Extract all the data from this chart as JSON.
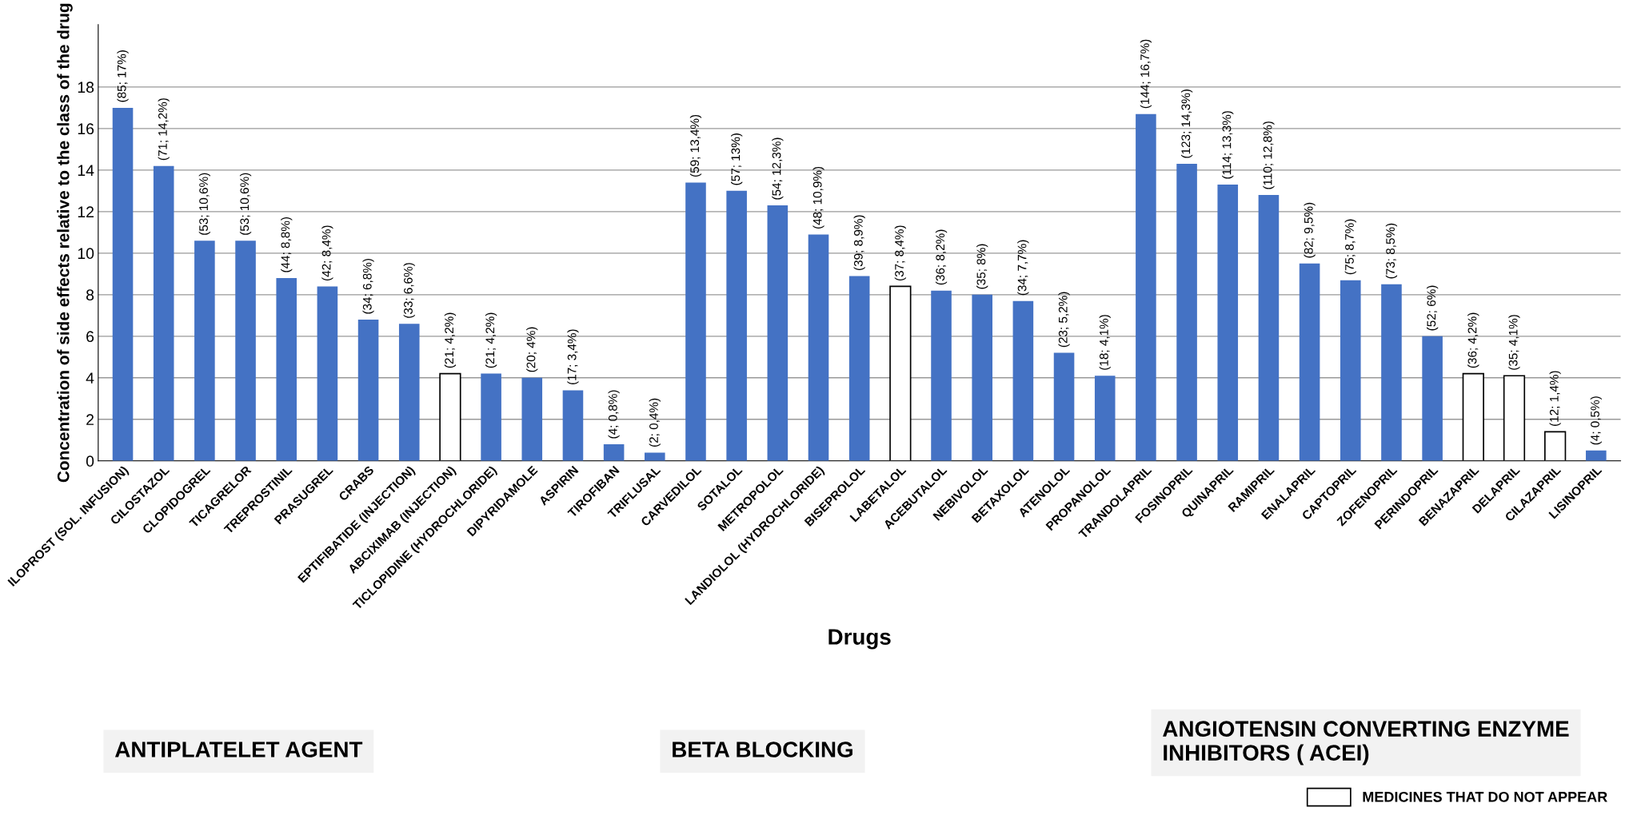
{
  "chart_data": {
    "type": "bar",
    "xlabel": "Drugs",
    "ylabel": "Concentration of side effects relative to the class of the drug",
    "categories": [
      "ILOPROST (SOL. INFUSION)",
      "CILOSTAZOL",
      "CLOPIDOGREL",
      "TICAGRELOR",
      "TREPROSTINIL",
      "PRASUGREL",
      "CRABS",
      "EPTIFIBATIDE (INJECTION)",
      "ABCIXIMAB (INJECTION)",
      "TICLOPIDINE (HYDROCHLORIDE)",
      "DIPYRIDAMOLE",
      "ASPIRIN",
      "TIROFIBAN",
      "TRIFLUSAL",
      "CARVEDILOL",
      "SOTALOL",
      "METROPOLOL",
      "LANDIOLOL (HYDROCHLORIDE)",
      "BISEPROLOL",
      "LABETALOL",
      "ACEBUTALOL",
      "NEBIVOLOL",
      "BETAXOLOL",
      "ATENOLOL",
      "PROPANOLOL",
      "TRANDOLAPRIL",
      "FOSINOPRIL",
      "QUINAPRIL",
      "RAMIPRIL",
      "ENALAPRIL",
      "CAPTOPRIL",
      "ZOFENOPRIL",
      "PERINDOPRIL",
      "BENAZAPRIL",
      "DELAPRIL",
      "CILAZAPRIL",
      "LISINOPRIL"
    ],
    "series": [
      {
        "color": "#4472c4",
        "values": [
          17,
          14.2,
          10.6,
          10.6,
          8.8,
          8.4,
          6.8,
          6.6,
          null,
          4.2,
          4,
          3.4,
          0.8,
          0.4,
          13.4,
          13,
          12.3,
          10.9,
          8.9,
          null,
          8.2,
          8,
          7.7,
          5.2,
          4.1,
          16.7,
          14.3,
          13.3,
          12.8,
          9.5,
          8.7,
          8.5,
          6,
          null,
          null,
          null,
          0.5
        ],
        "value_labels": [
          "(85; 17%)",
          "(71; 14,2%)",
          "(53; 10,6%)",
          "(53; 10,6%)",
          "(44; 8,8%)",
          "(42; 8,4%)",
          "(34; 6,8%)",
          "(33; 6,6%)",
          null,
          "(21; 4,2%)",
          "(20; 4%)",
          "(17; 3,4%)",
          "(4; 0,8%)",
          "(2; 0,4%)",
          "(59; 13,4%)",
          "(57; 13%)",
          "(54; 12,3%)",
          "(48; 10,9%)",
          "(39; 8,9%)",
          null,
          "(36; 8,2%)",
          "(35; 8%)",
          "(34; 7,7%)",
          "(23; 5,2%)",
          "(18; 4,1%)",
          "(144; 16,7%)",
          "(123; 14,3%)",
          "(114; 13,3%)",
          "(110; 12,8%)",
          "(82; 9,5%)",
          "(75; 8,7%)",
          "(73; 8,5%)",
          "(52; 6%)",
          null,
          null,
          null,
          "(4; 0,5%)"
        ]
      },
      {
        "name": "MEDICINES THAT DO NOT APPEAR",
        "color": "#ffffff",
        "values": [
          null,
          null,
          null,
          null,
          null,
          null,
          null,
          null,
          4.2,
          null,
          null,
          null,
          null,
          null,
          null,
          null,
          null,
          null,
          null,
          8.4,
          null,
          null,
          null,
          null,
          null,
          null,
          null,
          null,
          null,
          null,
          null,
          null,
          null,
          4.2,
          4.1,
          1.4,
          null
        ],
        "value_labels": [
          null,
          null,
          null,
          null,
          null,
          null,
          null,
          null,
          "(21; 4,2%)",
          null,
          null,
          null,
          null,
          null,
          null,
          null,
          null,
          null,
          null,
          "(37; 8,4%)",
          null,
          null,
          null,
          null,
          null,
          null,
          null,
          null,
          null,
          null,
          null,
          null,
          null,
          "(36; 4,2%)",
          "(35; 4,1%)",
          "(12; 1,4%)",
          null
        ]
      }
    ],
    "ylim": [
      0,
      21
    ],
    "yticks": [
      0,
      2,
      4,
      6,
      8,
      10,
      12,
      14,
      16,
      18
    ],
    "grid": "y",
    "legend": "bottom right",
    "annotations": [
      "ANTIPLATELET AGENT",
      "BETA BLOCKING",
      "ANGIOTENSIN CONVERTING ENZYME INHIBITORS ( ACEI)"
    ]
  }
}
